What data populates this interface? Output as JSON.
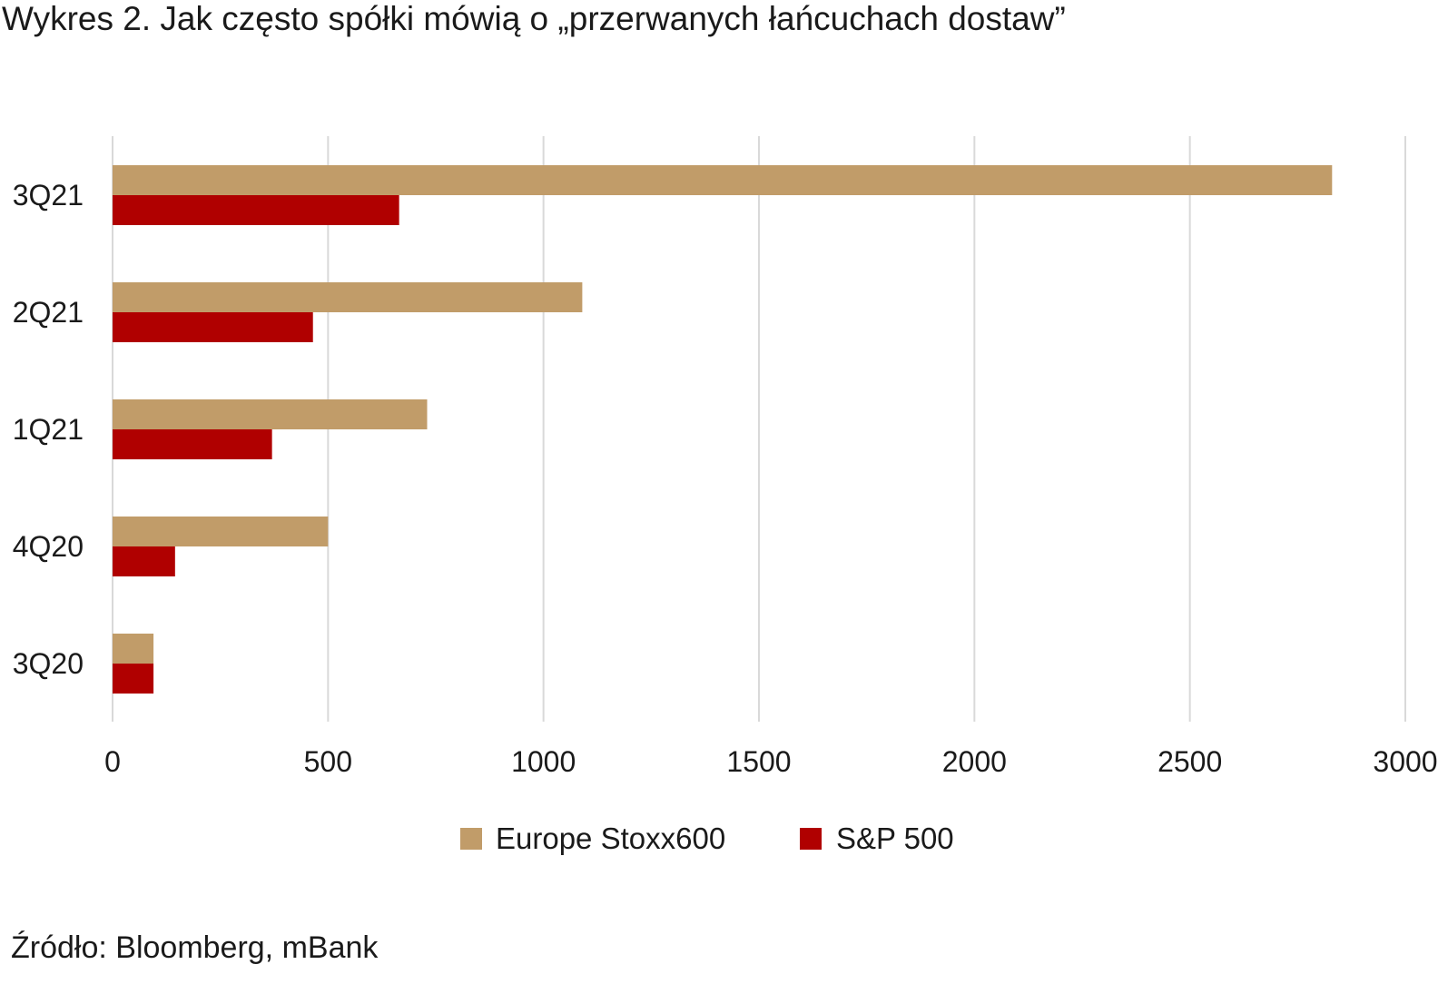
{
  "chart_data": {
    "type": "bar",
    "orientation": "horizontal",
    "title": "Wykres 2. Jak często spółki mówią o „przerwanych łańcuchach dostaw”",
    "categories": [
      "3Q21",
      "2Q21",
      "1Q21",
      "4Q20",
      "3Q20"
    ],
    "series": [
      {
        "name": "Europe Stoxx600",
        "color": "#c19c69",
        "values": [
          2830,
          1090,
          730,
          500,
          95
        ]
      },
      {
        "name": "S&P 500",
        "color": "#b00000",
        "values": [
          665,
          465,
          370,
          145,
          95
        ]
      }
    ],
    "xlim": [
      0,
      3000
    ],
    "xticks": [
      "0",
      "500",
      "1000",
      "1500",
      "2000",
      "2500",
      "3000"
    ],
    "xlabel": "",
    "ylabel": "",
    "grid": true,
    "legend_position": "bottom",
    "source": "Źródło: Bloomberg, mBank",
    "gridline_color": "#d9d9d9"
  }
}
